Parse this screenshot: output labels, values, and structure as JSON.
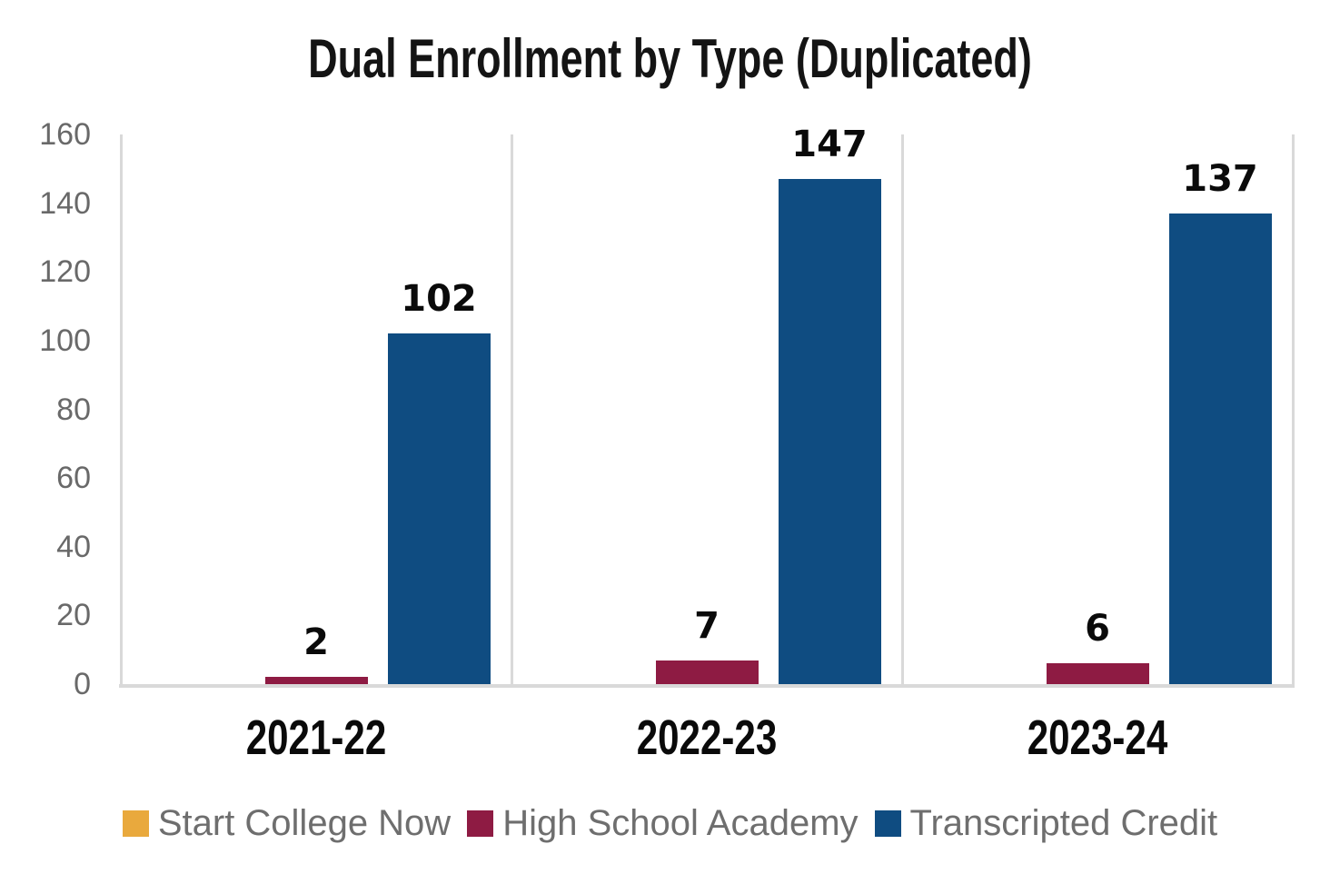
{
  "page": {
    "background": "#FFFFFF"
  },
  "chart_data": {
    "type": "bar",
    "title": "Dual Enrollment by Type (Duplicated)",
    "categories": [
      "2021-22",
      "2022-23",
      "2023-24"
    ],
    "series": [
      {
        "name": "Start College Now",
        "color": "#E9A93D",
        "values": [
          0,
          0,
          0
        ],
        "data_labels": [
          "",
          "",
          ""
        ]
      },
      {
        "name": "High School Academy",
        "color": "#8E1B43",
        "values": [
          2,
          7,
          6
        ],
        "data_labels": [
          "2",
          "7",
          "6"
        ]
      },
      {
        "name": "Transcripted Credit",
        "color": "#0F4C81",
        "values": [
          102,
          147,
          137
        ],
        "data_labels": [
          "102",
          "147",
          "137"
        ]
      }
    ],
    "y_axis": {
      "ticks": [
        0,
        20,
        40,
        60,
        80,
        100,
        120,
        140,
        160
      ],
      "range": [
        0,
        160
      ],
      "label_color": "#696969"
    },
    "gridlines": {
      "horizontal": false,
      "vertical_category_separators": true,
      "color": "#D9D9D9"
    },
    "legend": {
      "position": "bottom",
      "text_color": "#6E6E6E"
    },
    "title_color": "#141414",
    "data_label_color": "#0A0A0A"
  }
}
